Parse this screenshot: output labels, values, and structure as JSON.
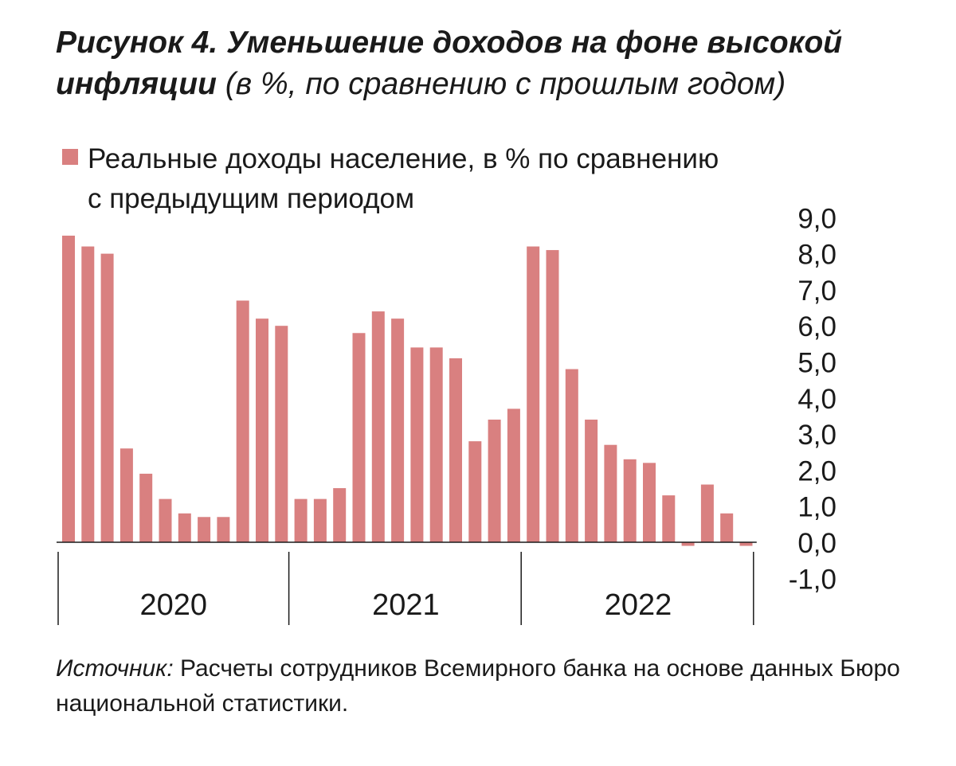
{
  "title": {
    "main": "Рисунок 4.  Уменьшение доходов на фоне высокой инфляции",
    "subtitle": "(в %, по сравнению с прошлым годом)"
  },
  "legend": {
    "line1": "Реальные доходы население, в % по сравнению",
    "line2": "с предыдущим периодом"
  },
  "source": {
    "label": "Источник:",
    "text": "Расчеты сотрудников Всемирного банка на основе данных Бюро национальной статистики."
  },
  "chart_data": {
    "type": "bar",
    "series": [
      {
        "name": "Реальные доходы население, в % по сравнению с предыдущим периодом",
        "values": [
          8.5,
          8.2,
          8.0,
          2.6,
          1.9,
          1.2,
          0.8,
          0.7,
          0.7,
          6.7,
          6.2,
          6.0,
          1.2,
          1.2,
          1.5,
          5.8,
          6.4,
          6.2,
          5.4,
          5.4,
          5.1,
          2.8,
          3.4,
          3.7,
          8.2,
          8.1,
          4.8,
          3.4,
          2.7,
          2.3,
          2.2,
          1.3,
          -0.1,
          1.6,
          0.8,
          -0.1
        ],
        "color": "#d98080"
      }
    ],
    "year_groups": [
      {
        "label": "2020",
        "count": 12
      },
      {
        "label": "2021",
        "count": 12
      },
      {
        "label": "2022",
        "count": 12
      }
    ],
    "y_ticks": [
      "9,0",
      "8,0",
      "7,0",
      "6,0",
      "5,0",
      "4,0",
      "3,0",
      "2,0",
      "1,0",
      "0,0",
      "-1,0"
    ],
    "y_tick_values": [
      9,
      8,
      7,
      6,
      5,
      4,
      3,
      2,
      1,
      0,
      -1
    ],
    "ylim": [
      -1,
      9
    ],
    "y_axis_position": "right",
    "grid": false
  }
}
